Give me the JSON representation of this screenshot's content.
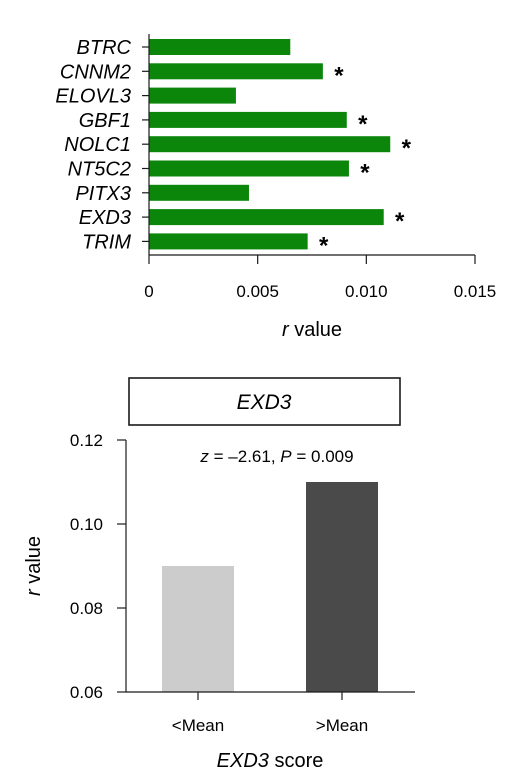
{
  "chart_data": [
    {
      "type": "bar",
      "orientation": "horizontal",
      "categories": [
        "BTRC",
        "CNNM2",
        "ELOVL3",
        "GBF1",
        "NOLC1",
        "NT5C2",
        "PITX3",
        "EXD3",
        "TRIM"
      ],
      "values": [
        0.0065,
        0.008,
        0.004,
        0.0091,
        0.0111,
        0.0092,
        0.0046,
        0.0108,
        0.0073
      ],
      "significant": [
        false,
        true,
        false,
        true,
        true,
        true,
        false,
        true,
        true
      ],
      "significance_marker": "*",
      "bar_color": "#0b860b",
      "xlim": [
        0,
        0.015
      ],
      "xticks": [
        "0",
        "0.005",
        "0.010",
        "0.015"
      ],
      "xlabel_italic": "r",
      "xlabel_rest": " value"
    },
    {
      "type": "bar",
      "title": "EXD3",
      "annotation": {
        "z_label": "z",
        "z_value": " = –2.61, ",
        "p_label": "P",
        "p_value": " = 0.009"
      },
      "categories": [
        "<Mean",
        ">Mean"
      ],
      "values": [
        0.09,
        0.11
      ],
      "colors": [
        "#cccccc",
        "#4a4a4a"
      ],
      "ylim": [
        0.06,
        0.12
      ],
      "yticks": [
        "0.12",
        "0.10",
        "0.08",
        "0.06"
      ],
      "ylabel_italic": "r",
      "ylabel_rest": " value",
      "xlabel_italic": "EXD3",
      "xlabel_rest": " score"
    }
  ]
}
